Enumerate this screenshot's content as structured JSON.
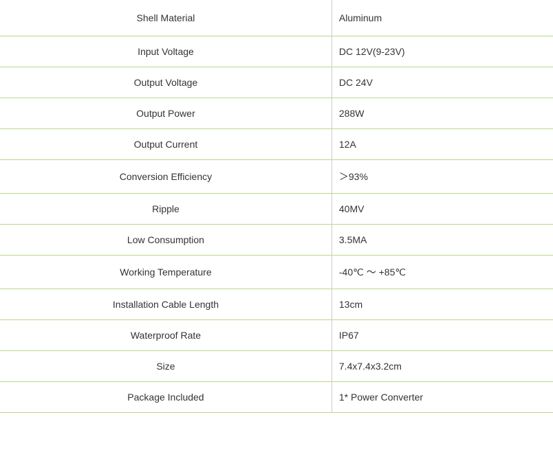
{
  "table": {
    "background_color": "#ffffff",
    "border_color": "#b9d989",
    "divider_color": "#cccccc",
    "text_color": "#333333",
    "font_size": 14,
    "font_family": "Verdana",
    "rows": [
      {
        "label": "Shell Material",
        "value": "Aluminum"
      },
      {
        "label": "Input Voltage",
        "value": "DC 12V(9-23V)"
      },
      {
        "label": "Output Voltage",
        "value": "DC 24V"
      },
      {
        "label": "Output Power",
        "value": "288W"
      },
      {
        "label": "Output Current",
        "value": "12A"
      },
      {
        "label": "Conversion Efficiency",
        "value": "＞93%"
      },
      {
        "label": "Ripple",
        "value": "40MV"
      },
      {
        "label": "Low Consumption",
        "value": "3.5MA"
      },
      {
        "label": "Working Temperature",
        "value": "-40℃ ～ +85℃"
      },
      {
        "label": "Installation Cable Length",
        "value": "13cm"
      },
      {
        "label": "Waterproof Rate",
        "value": "IP67"
      },
      {
        "label": "Size",
        "value": "7.4x7.4x3.2cm"
      },
      {
        "label": "Package Included",
        "value": "1* Power Converter"
      }
    ]
  }
}
